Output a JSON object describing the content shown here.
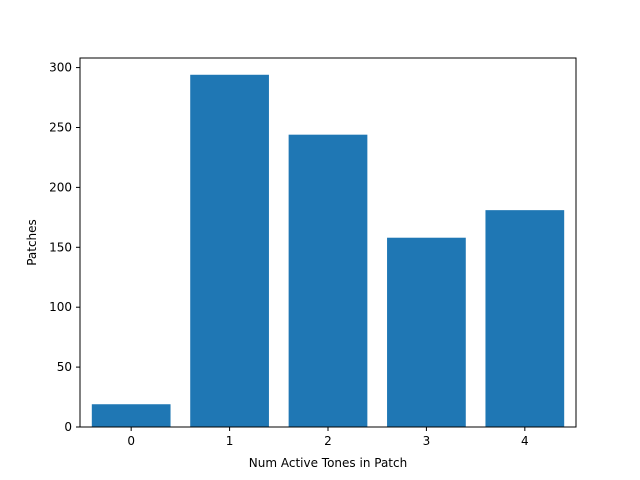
{
  "chart_data": {
    "type": "bar",
    "categories": [
      "0",
      "1",
      "2",
      "3",
      "4"
    ],
    "values": [
      19,
      294,
      244,
      158,
      181
    ],
    "xlabel": "Num Active Tones in Patch",
    "ylabel": "Patches",
    "ylim": [
      0,
      308
    ],
    "yticks": [
      0,
      50,
      100,
      150,
      200,
      250,
      300
    ],
    "grid": false,
    "bar_color": "#1f77b4"
  }
}
